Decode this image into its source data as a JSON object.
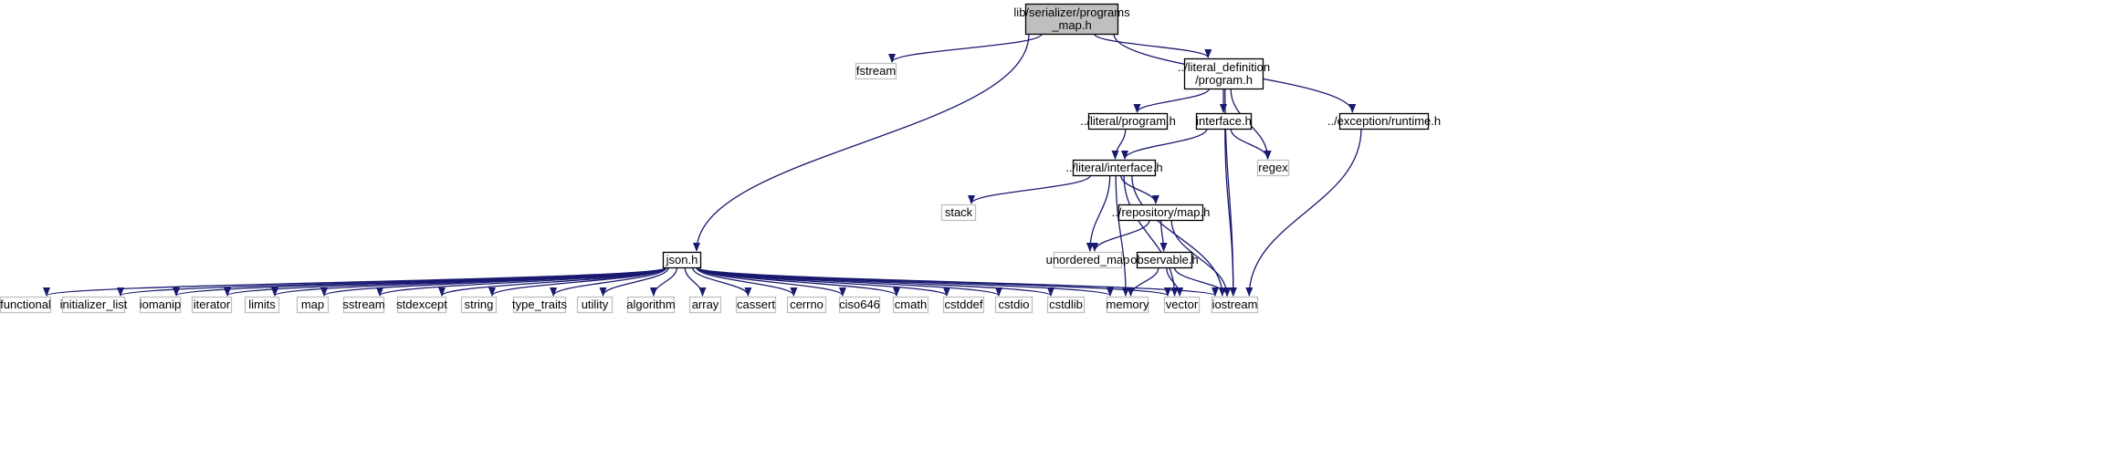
{
  "colors": {
    "edge": "#191970",
    "root_fill": "#bfbfbf",
    "project_border": "#000000",
    "system_border": "#bfbfbf",
    "system_text": "#000000"
  },
  "nodes": {
    "root": {
      "lines": [
        "lib/serializer/programs",
        "_map.h"
      ],
      "kind": "root"
    },
    "fstream": {
      "lines": [
        "fstream"
      ],
      "kind": "system"
    },
    "literal_definition_program": {
      "lines": [
        "../literal_definition",
        "/program.h"
      ],
      "kind": "project"
    },
    "exception_runtime": {
      "lines": [
        "../exception/runtime.h"
      ],
      "kind": "project"
    },
    "literal_program": {
      "lines": [
        "../literal/program.h"
      ],
      "kind": "project"
    },
    "interface": {
      "lines": [
        "interface.h"
      ],
      "kind": "project"
    },
    "regex": {
      "lines": [
        "regex"
      ],
      "kind": "system"
    },
    "literal_interface": {
      "lines": [
        "../literal/interface.h"
      ],
      "kind": "project"
    },
    "stack": {
      "lines": [
        "stack"
      ],
      "kind": "system"
    },
    "repository_map": {
      "lines": [
        "../repository/map.h"
      ],
      "kind": "project"
    },
    "unordered_map": {
      "lines": [
        "unordered_map"
      ],
      "kind": "system"
    },
    "observable": {
      "lines": [
        "observable.h"
      ],
      "kind": "project"
    },
    "json": {
      "lines": [
        "json.h"
      ],
      "kind": "project"
    },
    "functional": {
      "lines": [
        "functional"
      ],
      "kind": "system"
    },
    "initializer_list": {
      "lines": [
        "initializer_list"
      ],
      "kind": "system"
    },
    "iomanip": {
      "lines": [
        "iomanip"
      ],
      "kind": "system"
    },
    "iterator": {
      "lines": [
        "iterator"
      ],
      "kind": "system"
    },
    "limits": {
      "lines": [
        "limits"
      ],
      "kind": "system"
    },
    "map": {
      "lines": [
        "map"
      ],
      "kind": "system"
    },
    "sstream": {
      "lines": [
        "sstream"
      ],
      "kind": "system"
    },
    "stdexcept": {
      "lines": [
        "stdexcept"
      ],
      "kind": "system"
    },
    "string": {
      "lines": [
        "string"
      ],
      "kind": "system"
    },
    "type_traits": {
      "lines": [
        "type_traits"
      ],
      "kind": "system"
    },
    "utility": {
      "lines": [
        "utility"
      ],
      "kind": "system"
    },
    "algorithm": {
      "lines": [
        "algorithm"
      ],
      "kind": "system"
    },
    "array": {
      "lines": [
        "array"
      ],
      "kind": "system"
    },
    "cassert": {
      "lines": [
        "cassert"
      ],
      "kind": "system"
    },
    "cerrno": {
      "lines": [
        "cerrno"
      ],
      "kind": "system"
    },
    "ciso646": {
      "lines": [
        "ciso646"
      ],
      "kind": "system"
    },
    "cmath": {
      "lines": [
        "cmath"
      ],
      "kind": "system"
    },
    "cstddef": {
      "lines": [
        "cstddef"
      ],
      "kind": "system"
    },
    "cstdio": {
      "lines": [
        "cstdio"
      ],
      "kind": "system"
    },
    "cstdlib": {
      "lines": [
        "cstdlib"
      ],
      "kind": "system"
    },
    "memory": {
      "lines": [
        "memory"
      ],
      "kind": "system"
    },
    "vector": {
      "lines": [
        "vector"
      ],
      "kind": "system"
    },
    "iostream": {
      "lines": [
        "iostream"
      ],
      "kind": "system"
    }
  },
  "edges": [
    [
      "root",
      "fstream"
    ],
    [
      "root",
      "literal_definition_program"
    ],
    [
      "root",
      "exception_runtime"
    ],
    [
      "root",
      "json"
    ],
    [
      "literal_definition_program",
      "literal_program"
    ],
    [
      "literal_definition_program",
      "interface"
    ],
    [
      "literal_definition_program",
      "regex"
    ],
    [
      "literal_definition_program",
      "iostream"
    ],
    [
      "exception_runtime",
      "iostream"
    ],
    [
      "literal_program",
      "literal_interface"
    ],
    [
      "interface",
      "literal_interface"
    ],
    [
      "interface",
      "regex"
    ],
    [
      "interface",
      "iostream"
    ],
    [
      "literal_interface",
      "stack"
    ],
    [
      "literal_interface",
      "repository_map"
    ],
    [
      "literal_interface",
      "unordered_map"
    ],
    [
      "literal_interface",
      "memory"
    ],
    [
      "literal_interface",
      "vector"
    ],
    [
      "literal_interface",
      "iostream"
    ],
    [
      "repository_map",
      "unordered_map"
    ],
    [
      "repository_map",
      "observable"
    ],
    [
      "repository_map",
      "iostream"
    ],
    [
      "observable",
      "memory"
    ],
    [
      "observable",
      "vector"
    ],
    [
      "observable",
      "iostream"
    ],
    [
      "json",
      "functional"
    ],
    [
      "json",
      "initializer_list"
    ],
    [
      "json",
      "iomanip"
    ],
    [
      "json",
      "iterator"
    ],
    [
      "json",
      "limits"
    ],
    [
      "json",
      "map"
    ],
    [
      "json",
      "sstream"
    ],
    [
      "json",
      "stdexcept"
    ],
    [
      "json",
      "string"
    ],
    [
      "json",
      "type_traits"
    ],
    [
      "json",
      "utility"
    ],
    [
      "json",
      "algorithm"
    ],
    [
      "json",
      "array"
    ],
    [
      "json",
      "cassert"
    ],
    [
      "json",
      "cerrno"
    ],
    [
      "json",
      "ciso646"
    ],
    [
      "json",
      "cmath"
    ],
    [
      "json",
      "cstddef"
    ],
    [
      "json",
      "cstdio"
    ],
    [
      "json",
      "cstdlib"
    ],
    [
      "json",
      "memory"
    ],
    [
      "json",
      "vector"
    ],
    [
      "json",
      "iostream"
    ]
  ]
}
